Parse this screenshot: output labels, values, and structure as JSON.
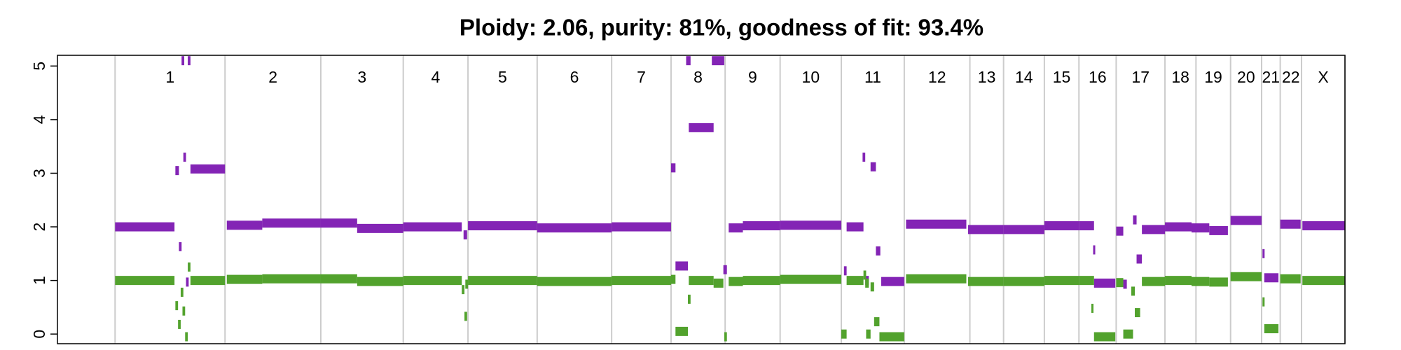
{
  "chart_data": {
    "type": "segments",
    "title": "Ploidy: 2.06, purity: 81%, goodness of fit: 93.4%",
    "ylim": [
      -0.18,
      5.2
    ],
    "yticks": [
      0,
      1,
      2,
      3,
      4,
      5
    ],
    "xlim": [
      -11,
      1441
    ],
    "chromosomes": [
      "1",
      "2",
      "3",
      "4",
      "5",
      "6",
      "7",
      "8",
      "9",
      "10",
      "11",
      "12",
      "13",
      "14",
      "15",
      "16",
      "17",
      "18",
      "19",
      "20",
      "21",
      "22",
      "X"
    ],
    "boundaries": [
      54,
      178,
      286,
      379,
      452,
      530,
      614,
      681,
      742,
      804,
      873,
      944,
      1018,
      1056,
      1102,
      1141,
      1183,
      1238,
      1273,
      1312,
      1347,
      1368,
      1392,
      1441
    ],
    "grid": true,
    "series": [
      {
        "color": "#8324b5",
        "starts": [
          54,
          122,
          126,
          131,
          134,
          139,
          129,
          136,
          180,
          220,
          286,
          327,
          379,
          447,
          452,
          530,
          614,
          681,
          686,
          701,
          698,
          727,
          740,
          746,
          762,
          804,
          876,
          879,
          897,
          900,
          906,
          912,
          918,
          946,
          1016,
          1056,
          1102,
          1141,
          1157,
          1158,
          1183,
          1191,
          1202,
          1206,
          1212,
          1238,
          1268,
          1288,
          1312,
          1348,
          1350,
          1368,
          1393
        ],
        "ends": [
          121,
          126,
          129,
          134,
          137,
          178,
          132,
          139,
          220,
          286,
          327,
          379,
          445,
          451,
          530,
          614,
          681,
          686,
          700,
          729,
          703,
          741,
          744,
          762,
          804,
          873,
          879,
          898,
          900,
          904,
          912,
          917,
          944,
          1014,
          1056,
          1102,
          1141,
          1158,
          1159,
          1182,
          1191,
          1195,
          1206,
          1212,
          1238,
          1268,
          1288,
          1309,
          1347,
          1350,
          1366,
          1391,
          1441
        ],
        "values": [
          2.0,
          3.05,
          1.63,
          3.3,
          0.97,
          3.08,
          5.1,
          5.1,
          2.03,
          2.07,
          2.07,
          1.97,
          2.0,
          1.85,
          2.02,
          1.98,
          2.0,
          3.1,
          1.27,
          3.85,
          5.1,
          5.1,
          1.2,
          1.98,
          2.02,
          2.03,
          1.18,
          2.0,
          3.3,
          1.0,
          3.12,
          1.55,
          0.98,
          2.05,
          1.95,
          1.95,
          2.02,
          2.02,
          1.57,
          0.95,
          1.92,
          0.93,
          2.13,
          1.4,
          1.95,
          2.0,
          1.98,
          1.93,
          2.12,
          1.5,
          1.05,
          2.05,
          2.02
        ]
      },
      {
        "color": "#52a22d",
        "starts": [
          54,
          122,
          125,
          128,
          130,
          133,
          136,
          139,
          180,
          220,
          286,
          327,
          379,
          445,
          448,
          449,
          452,
          530,
          614,
          681,
          686,
          700,
          701,
          729,
          741,
          746,
          762,
          804,
          873,
          879,
          898,
          900,
          901,
          906,
          910,
          916,
          946,
          1016,
          1056,
          1102,
          1141,
          1155,
          1158,
          1183,
          1191,
          1200,
          1204,
          1212,
          1238,
          1268,
          1288,
          1312,
          1348,
          1350,
          1368,
          1393
        ],
        "ends": [
          121,
          125,
          128,
          131,
          133,
          136,
          139,
          178,
          220,
          286,
          327,
          379,
          445,
          448,
          451,
          452,
          530,
          614,
          681,
          686,
          700,
          703,
          729,
          740,
          744,
          762,
          804,
          873,
          879,
          898,
          901,
          904,
          906,
          910,
          916,
          944,
          1014,
          1056,
          1102,
          1141,
          1158,
          1157,
          1182,
          1191,
          1202,
          1204,
          1210,
          1238,
          1268,
          1288,
          1309,
          1347,
          1350,
          1366,
          1391,
          1441
        ],
        "values": [
          1.0,
          0.53,
          0.18,
          0.78,
          0.43,
          -0.05,
          1.25,
          1.0,
          1.02,
          1.03,
          1.03,
          0.98,
          1.0,
          0.83,
          0.33,
          0.93,
          1.0,
          0.98,
          1.0,
          1.02,
          0.05,
          0.65,
          1.0,
          0.95,
          -0.05,
          0.98,
          1.0,
          1.02,
          0.0,
          1.0,
          1.1,
          0.95,
          0.0,
          0.88,
          0.23,
          -0.05,
          1.03,
          0.98,
          0.98,
          1.0,
          1.0,
          0.48,
          -0.05,
          0.96,
          0.0,
          0.8,
          0.4,
          0.98,
          1.0,
          0.98,
          0.97,
          1.07,
          0.6,
          0.1,
          1.03,
          1.0
        ]
      }
    ]
  }
}
